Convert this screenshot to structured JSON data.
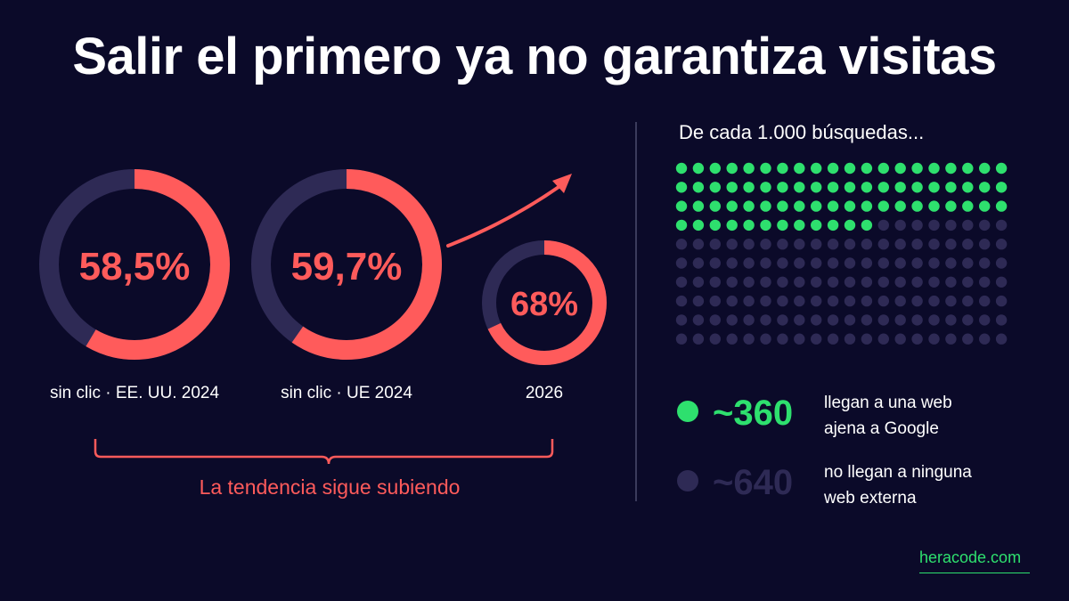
{
  "title": "Salir el primero ya no garantiza visitas",
  "colors": {
    "background": "#0b0a29",
    "accent_red": "#ff5b5b",
    "accent_green": "#2ee06e",
    "muted": "#2e2a55",
    "text": "#ffffff"
  },
  "chart_data": [
    {
      "type": "pie",
      "subtype": "donut-progress",
      "series": [
        {
          "label": "sin clic · EE. UU. 2024",
          "value_text": "58,5%",
          "value": 58.5
        },
        {
          "label": "sin clic · UE 2024",
          "value_text": "59,7%",
          "value": 59.7
        },
        {
          "label": "2026",
          "value_text": "68%",
          "value": 68
        }
      ],
      "annotation": "La tendencia sigue subiendo"
    },
    {
      "type": "waffle",
      "title": "De cada 1.000 búsquedas...",
      "total_dots": 200,
      "highlight_dots": 72,
      "legend": [
        {
          "count": "~360",
          "text_line1": "llegan a una web",
          "text_line2": "ajena a Google",
          "color": "#2ee06e"
        },
        {
          "count": "~640",
          "text_line1": "no llegan a ninguna",
          "text_line2": "web externa",
          "color": "#2e2a55"
        }
      ]
    }
  ],
  "brand": "heracode.com"
}
